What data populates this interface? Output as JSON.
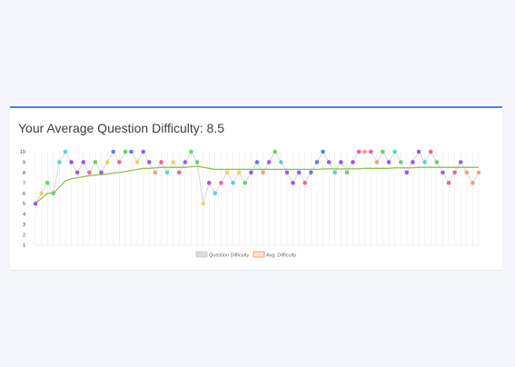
{
  "card": {
    "title_prefix": "Your Average Question Difficulty:",
    "title_value": "8.5"
  },
  "colors": {
    "accent_border": "#4a7fd6",
    "avg_line": "#8bc34a",
    "connector": "#c8c8c8",
    "grid": "#e6e6e6",
    "legend_question_box": "#dddddd",
    "legend_avg_box": "#f4a07a"
  },
  "chart_data": {
    "type": "line",
    "ylim": [
      1,
      10
    ],
    "yticks": [
      "1",
      "2",
      "3",
      "4",
      "5",
      "6",
      "7",
      "8",
      "9",
      "10"
    ],
    "grid": true,
    "legend_position": "bottom",
    "legend": [
      "Question Difficulty",
      "Avg. Difficulty"
    ],
    "series": [
      {
        "name": "Question Difficulty",
        "values": [
          5,
          6,
          7,
          6,
          9,
          10,
          9,
          8,
          9,
          8,
          9,
          8,
          9,
          10,
          9,
          10,
          10,
          9,
          10,
          9,
          8,
          9,
          8,
          9,
          8,
          9,
          10,
          9,
          5,
          7,
          6,
          7,
          8,
          7,
          8,
          7,
          8,
          9,
          8,
          9,
          10,
          9,
          8,
          7,
          8,
          7,
          8,
          9,
          10,
          9,
          8,
          9,
          8,
          9,
          10,
          10,
          10,
          9,
          10,
          9,
          10,
          9,
          8,
          9,
          10,
          9,
          10,
          9,
          8,
          7,
          8,
          9,
          8,
          7,
          8
        ],
        "colors": [
          "#9b59f0",
          "#f7d15c",
          "#6cd06c",
          "#6cd06c",
          "#56d3d8",
          "#56d3d8",
          "#9b59f0",
          "#9b59f0",
          "#9b59f0",
          "#f06292",
          "#6cd06c",
          "#9b59f0",
          "#f7d15c",
          "#5b7ef0",
          "#f06292",
          "#6cd06c",
          "#5b7ef0",
          "#f7d15c",
          "#9b59f0",
          "#9b59f0",
          "#f4a07a",
          "#f06292",
          "#56d3d8",
          "#f7d15c",
          "#f06292",
          "#9b59f0",
          "#6cd06c",
          "#6cd06c",
          "#f7d15c",
          "#9b59f0",
          "#56d3d8",
          "#f06292",
          "#f7d15c",
          "#56d3d8",
          "#f7d15c",
          "#6cd06c",
          "#9b59f0",
          "#5b7ef0",
          "#f4a07a",
          "#9b59f0",
          "#6cd06c",
          "#56d3d8",
          "#9b59f0",
          "#9b59f0",
          "#9b59f0",
          "#f06292",
          "#5b7ef0",
          "#5b7ef0",
          "#5b7ef0",
          "#9b59f0",
          "#56d3d8",
          "#9b59f0",
          "#6cd06c",
          "#9b59f0",
          "#f06292",
          "#f4a07a",
          "#f06292",
          "#f4a07a",
          "#6cd06c",
          "#9b59f0",
          "#56d3d8",
          "#6cd06c",
          "#9b59f0",
          "#9b59f0",
          "#9b59f0",
          "#56d3d8",
          "#f06292",
          "#6cd06c",
          "#9b59f0",
          "#f06292",
          "#f06292",
          "#9b59f0",
          "#f4a07a",
          "#f4a07a",
          "#f4a07a"
        ]
      },
      {
        "name": "Avg. Difficulty",
        "values": [
          5,
          5.5,
          6,
          6,
          6.6,
          7.2,
          7.4,
          7.5,
          7.6,
          7.7,
          7.75,
          7.8,
          7.85,
          7.95,
          8.0,
          8.1,
          8.2,
          8.3,
          8.4,
          8.4,
          8.45,
          8.5,
          8.5,
          8.5,
          8.5,
          8.5,
          8.55,
          8.6,
          8.5,
          8.4,
          8.3,
          8.3,
          8.3,
          8.3,
          8.3,
          8.3,
          8.3,
          8.3,
          8.3,
          8.3,
          8.3,
          8.3,
          8.3,
          8.3,
          8.3,
          8.3,
          8.3,
          8.3,
          8.35,
          8.35,
          8.35,
          8.35,
          8.35,
          8.35,
          8.35,
          8.4,
          8.4,
          8.4,
          8.4,
          8.4,
          8.45,
          8.45,
          8.45,
          8.45,
          8.5,
          8.5,
          8.5,
          8.5,
          8.5,
          8.5,
          8.5,
          8.5,
          8.5,
          8.5,
          8.5
        ]
      }
    ]
  }
}
